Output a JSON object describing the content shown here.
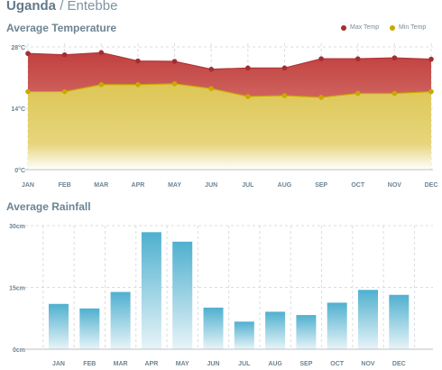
{
  "header": {
    "country": "Uganda",
    "separator": "/",
    "city": "Entebbe"
  },
  "colors": {
    "max_temp": "#a32e32",
    "min_temp": "#c9a800",
    "rain": "#5ab4d0",
    "text": "#6d8494"
  },
  "chart_data": [
    {
      "type": "area",
      "title": "Average Temperature",
      "categories": [
        "JAN",
        "FEB",
        "MAR",
        "APR",
        "MAY",
        "JUN",
        "JUL",
        "AUG",
        "SEP",
        "OCT",
        "NOV",
        "DEC"
      ],
      "series": [
        {
          "name": "Max Temp",
          "values": [
            26.5,
            26.2,
            26.7,
            24.8,
            24.7,
            22.9,
            23.2,
            23.2,
            25.3,
            25.3,
            25.5,
            25.2
          ]
        },
        {
          "name": "Min Temp",
          "values": [
            17.8,
            17.8,
            19.4,
            19.4,
            19.6,
            18.5,
            16.7,
            16.9,
            16.5,
            17.4,
            17.4,
            17.8
          ]
        }
      ],
      "ylim": [
        0,
        28
      ],
      "yticks": [
        "0°C",
        "14°C",
        "28°C"
      ],
      "grid": true,
      "legend": "top-right"
    },
    {
      "type": "bar",
      "title": "Average Rainfall",
      "categories": [
        "JAN",
        "FEB",
        "MAR",
        "APR",
        "MAY",
        "JUN",
        "JUL",
        "AUG",
        "SEP",
        "OCT",
        "NOV",
        "DEC"
      ],
      "values": [
        11.0,
        9.9,
        13.9,
        28.4,
        26.1,
        10.1,
        6.7,
        9.1,
        8.3,
        11.3,
        14.4,
        13.2
      ],
      "ylim": [
        0,
        30
      ],
      "yticks": [
        "0cm",
        "15cm",
        "30cm"
      ],
      "grid": true
    }
  ]
}
